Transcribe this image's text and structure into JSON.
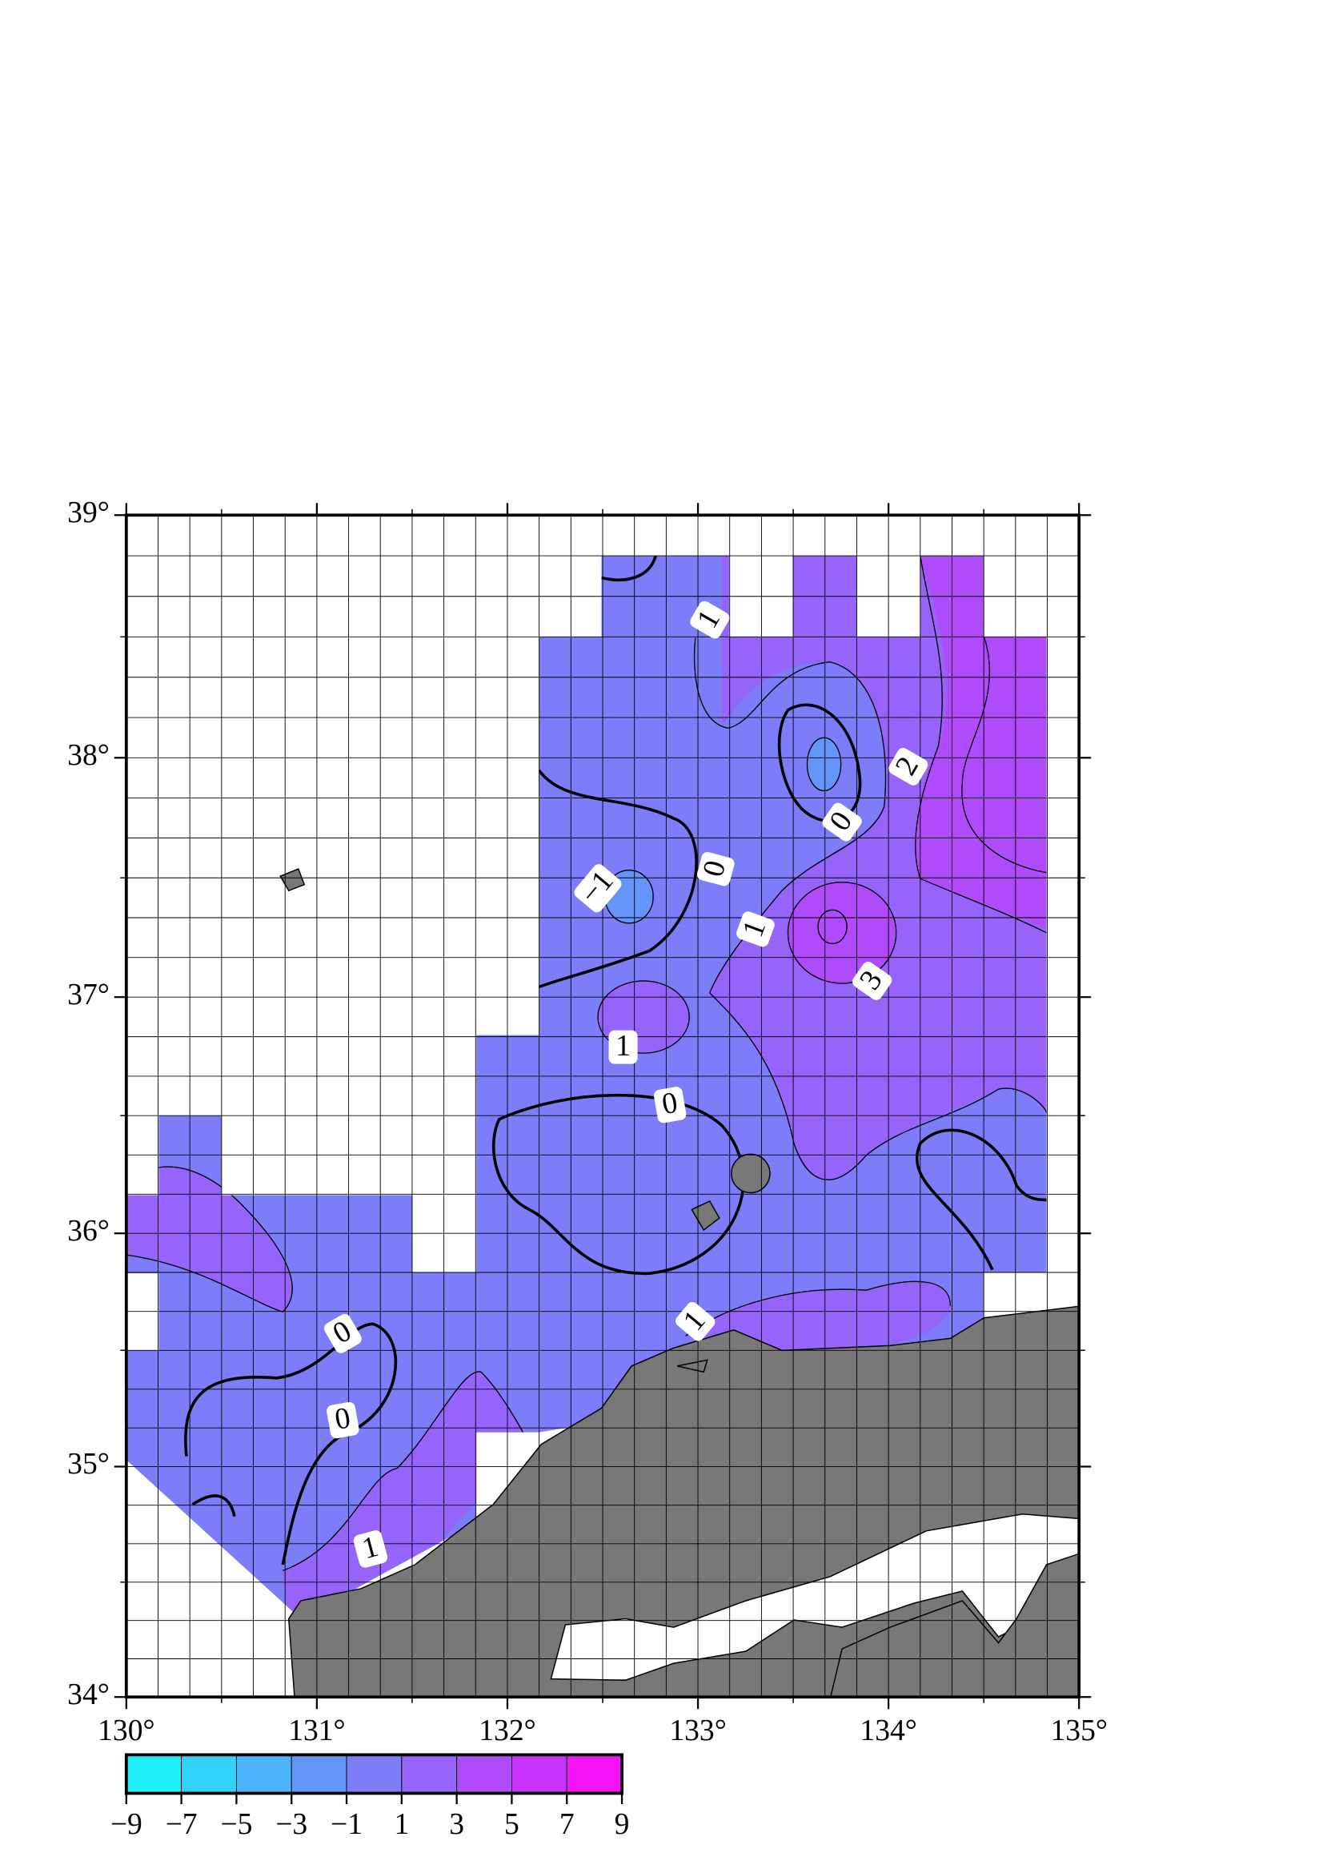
{
  "map": {
    "xlim": [
      130,
      135
    ],
    "ylim": [
      34,
      39
    ],
    "xticks": [
      {
        "value": 130,
        "label": "130°"
      },
      {
        "value": 131,
        "label": "131°"
      },
      {
        "value": 132,
        "label": "132°"
      },
      {
        "value": 133,
        "label": "133°"
      },
      {
        "value": 134,
        "label": "134°"
      },
      {
        "value": 135,
        "label": "135°"
      }
    ],
    "yticks": [
      {
        "value": 34,
        "label": "34°"
      },
      {
        "value": 35,
        "label": "35°"
      },
      {
        "value": 36,
        "label": "36°"
      },
      {
        "value": 37,
        "label": "37°"
      },
      {
        "value": 38,
        "label": "38°"
      },
      {
        "value": 39,
        "label": "39°"
      }
    ],
    "contour_labels": [
      1,
      2,
      0,
      0,
      {
        "value": -1,
        "label": "−1"
      },
      1,
      3,
      1,
      0,
      1,
      0,
      0,
      1
    ],
    "colorbar": {
      "ticks": [
        {
          "value": -9,
          "label": "−9"
        },
        {
          "value": -7,
          "label": "−7"
        },
        {
          "value": -5,
          "label": "−5"
        },
        {
          "value": -3,
          "label": "−3"
        },
        {
          "value": -1,
          "label": "−1"
        },
        1,
        3,
        5,
        7,
        9
      ],
      "colors": [
        "#1ef0fa",
        "#33d2fa",
        "#4bb4fa",
        "#6496fa",
        "#7d7dfa",
        "#9664fa",
        "#af4bfa",
        "#c832fa",
        "#f514f5"
      ]
    }
  }
}
